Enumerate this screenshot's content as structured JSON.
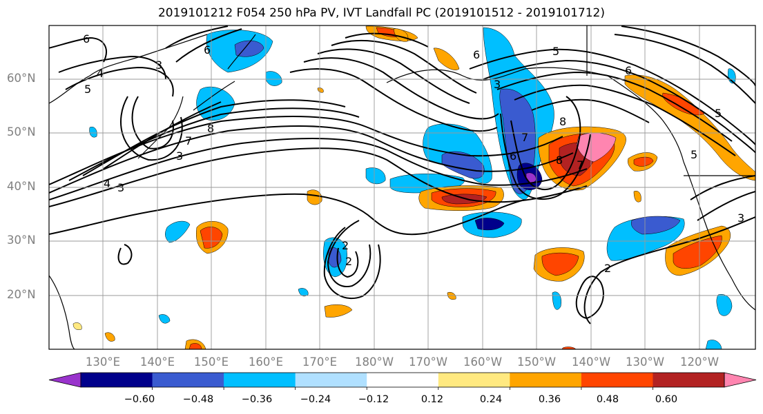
{
  "title": "2019101212 F054 250 hPa PV, IVT Landfall PC (2019101512 - 2019101712)",
  "lat_labels": [
    "60°N",
    "50°N",
    "40°N",
    "30°N",
    "20°N"
  ],
  "lon_labels": [
    "130°E",
    "140°E",
    "150°E",
    "160°E",
    "170°E",
    "180°W",
    "170°W",
    "160°W",
    "150°W",
    "140°W",
    "130°W",
    "120°W"
  ],
  "colorbar": {
    "labels": [
      "−0.60",
      "−0.48",
      "−0.36",
      "−0.24",
      "−0.12",
      "0.12",
      "0.24",
      "0.36",
      "0.48",
      "0.60"
    ],
    "levels": [
      -0.6,
      -0.48,
      -0.36,
      -0.24,
      -0.12,
      0.12,
      0.24,
      0.36,
      0.48,
      0.6
    ],
    "colors": [
      "#9933cc",
      "#00008b",
      "#3a5bd0",
      "#00bfff",
      "#b0e0ff",
      "#ffffff",
      "#ffe980",
      "#ffa500",
      "#ff4500",
      "#b22222",
      "#ff85b0"
    ],
    "extend": "both"
  },
  "contour_labels": [
    "6",
    "3",
    "5",
    "4",
    "3",
    "6",
    "6",
    "5",
    "3",
    "8",
    "7",
    "8",
    "7",
    "6",
    "4",
    "3",
    "6",
    "8",
    "7",
    "5",
    "2",
    "2",
    "2",
    "5",
    "3"
  ],
  "map": {
    "lon_range": [
      "125°E",
      "115°W"
    ],
    "lat_range": [
      "10°N",
      "70°N"
    ],
    "gridlines": true,
    "shading": "PV anomaly (colorbar)",
    "contours": "IVT (black lines)"
  }
}
